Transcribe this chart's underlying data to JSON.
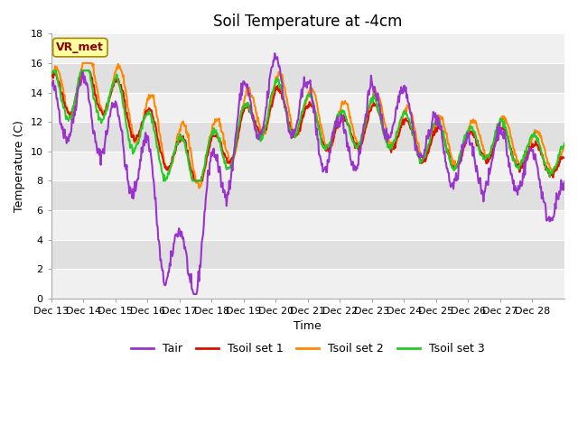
{
  "title": "Soil Temperature at -4cm",
  "xlabel": "Time",
  "ylabel": "Temperature (C)",
  "ylim": [
    0,
    18
  ],
  "annotation_text": "VR_met",
  "annotation_color": "#8B0000",
  "annotation_bg": "#FFFFA0",
  "annotation_edge": "#AA8800",
  "line_colors": {
    "Tair": "#9933CC",
    "Tsoil_set1": "#DD1100",
    "Tsoil_set2": "#FF8800",
    "Tsoil_set3": "#22CC22"
  },
  "legend_labels": [
    "Tair",
    "Tsoil set 1",
    "Tsoil set 2",
    "Tsoil set 3"
  ],
  "x_tick_labels": [
    "Dec 13",
    "Dec 14",
    "Dec 15",
    "Dec 16",
    "Dec 17",
    "Dec 18",
    "Dec 19",
    "Dec 20",
    "Dec 21",
    "Dec 22",
    "Dec 23",
    "Dec 24",
    "Dec 25",
    "Dec 26",
    "Dec 27",
    "Dec 28"
  ],
  "n_days": 16,
  "pts_per_day": 48,
  "fig_bg": "#FFFFFF",
  "plot_bg": "#FFFFFF",
  "band_light": "#F0F0F0",
  "band_dark": "#E0E0E0",
  "grid_color": "#CCCCCC",
  "title_fontsize": 12,
  "axis_label_fontsize": 9,
  "tick_fontsize": 8,
  "linewidth": 1.5
}
